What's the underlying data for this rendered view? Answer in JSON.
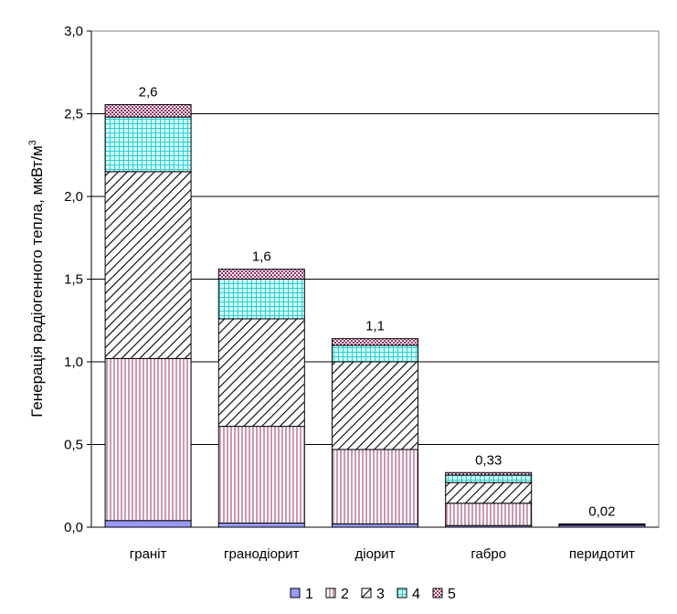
{
  "chart_data": {
    "type": "bar",
    "stacked": true,
    "ylabel": "Генерація радіогенного тепла, мкВт/м",
    "ylabel_sup": "3",
    "ylim": [
      0,
      3.0
    ],
    "yticks": [
      "0,0",
      "0,5",
      "1,0",
      "1,5",
      "2,0",
      "2,5",
      "3,0"
    ],
    "grid": true,
    "legend_position": "bottom",
    "categories": [
      "граніт",
      "гранодіорит",
      "діорит",
      "габро",
      "перидотит"
    ],
    "totals": [
      "2,6",
      "1,6",
      "1,1",
      "0,33",
      "0,02"
    ],
    "series": [
      {
        "name": "1",
        "values": [
          0.04,
          0.025,
          0.02,
          0.01,
          0.012
        ]
      },
      {
        "name": "2",
        "values": [
          0.98,
          0.585,
          0.45,
          0.135,
          0.004
        ]
      },
      {
        "name": "3",
        "values": [
          1.13,
          0.65,
          0.53,
          0.125,
          0.002
        ]
      },
      {
        "name": "4",
        "values": [
          0.33,
          0.24,
          0.1,
          0.045,
          0.001
        ]
      },
      {
        "name": "5",
        "values": [
          0.075,
          0.06,
          0.04,
          0.015,
          0.001
        ]
      }
    ],
    "colors": {
      "s1": "#9999ff",
      "s2_lines": "#993366",
      "s3_lines": "#000000",
      "s4_fill": "#ccffff",
      "s4_lines": "#33cccc",
      "s5_fill": "#ffffff",
      "s5_dots": "#993366"
    }
  }
}
